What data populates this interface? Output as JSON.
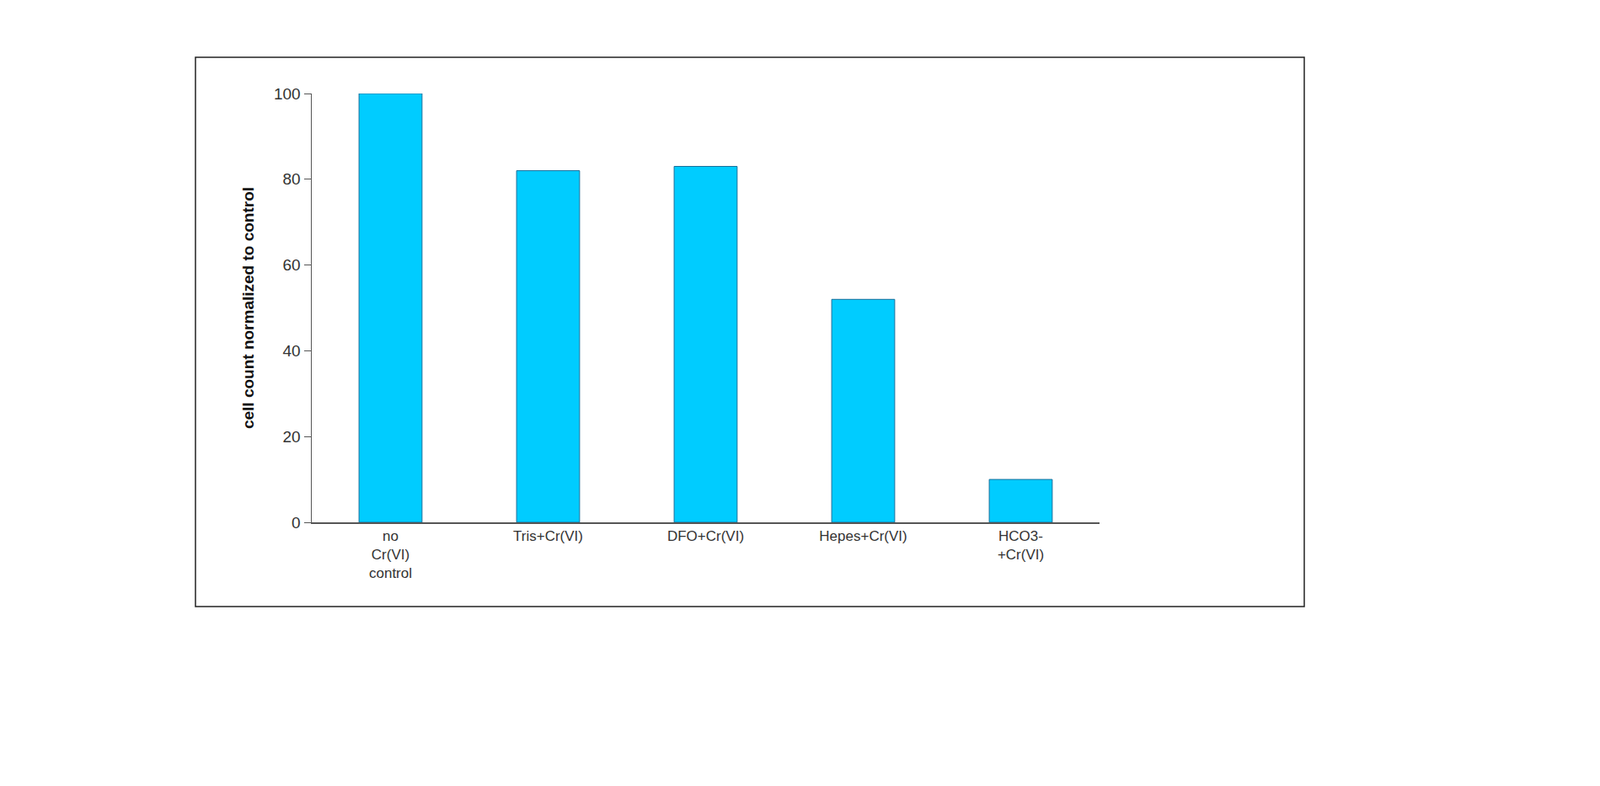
{
  "chart_data": {
    "type": "bar",
    "categories": [
      "no Cr(VI) control",
      "Tris+Cr(VI)",
      "DFO+Cr(VI)",
      "Hepes+Cr(VI)",
      "HCO3- +Cr(VI)"
    ],
    "values": [
      100,
      82,
      83,
      52,
      10
    ],
    "color": "#00ccff",
    "y_label": "cell count normalized to control",
    "ylim": [
      0,
      100
    ],
    "yticks": [
      0,
      20,
      40,
      60,
      80,
      100
    ],
    "grid": false
  }
}
